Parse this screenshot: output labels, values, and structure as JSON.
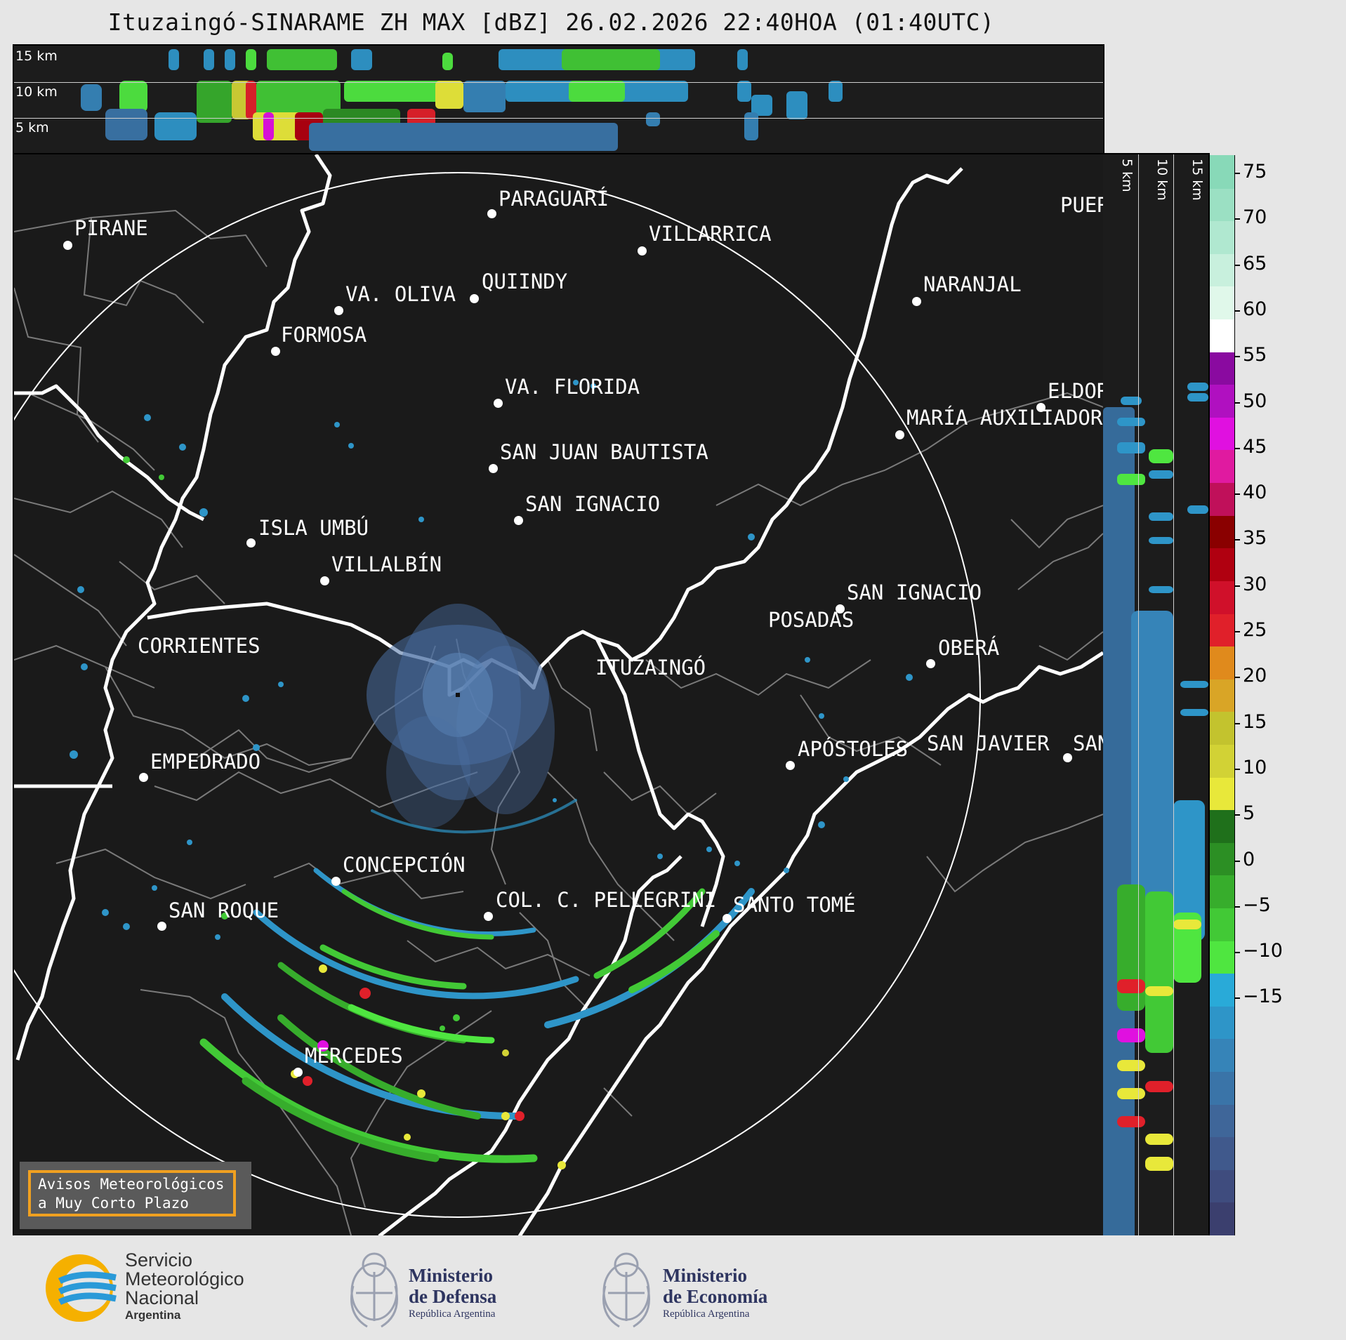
{
  "title": "Ituzaingó-SINARAME ZH MAX [dBZ] 26.02.2026 22:40HOA (01:40UTC)",
  "height_labels": [
    "15 km",
    "10 km",
    "5 km"
  ],
  "colorbar": {
    "ticks": [
      "75",
      "70",
      "65",
      "60",
      "55",
      "50",
      "45",
      "40",
      "35",
      "30",
      "25",
      "20",
      "15",
      "10",
      "5",
      "0",
      "−5",
      "−10",
      "−15"
    ],
    "colors": [
      "#3b3f6e",
      "#3f4c7e",
      "#40598c",
      "#3f6699",
      "#3a74a8",
      "#3684b8",
      "#2e95c8",
      "#29aad8",
      "#4fe640",
      "#42c936",
      "#37ad2c",
      "#2c8f24",
      "#1f701b",
      "#e8e83a",
      "#d2d235",
      "#c3c32e",
      "#d9a526",
      "#e08a1c",
      "#e0202a",
      "#d0102a",
      "#b00010",
      "#8a0000",
      "#c0105a",
      "#e01aa0",
      "#e010e0",
      "#b010c0",
      "#8a0aa0",
      "#ffffff",
      "#e0f8ea",
      "#c8f0dd",
      "#b0e8d0",
      "#9be0c3",
      "#88d9b8"
    ]
  },
  "cities": [
    {
      "name": "PARAGUARÍ"
    },
    {
      "name": "PIRANE"
    },
    {
      "name": "VILLARRICA"
    },
    {
      "name": "QUIINDY"
    },
    {
      "name": "VA. OLIVA"
    },
    {
      "name": "NARANJAL"
    },
    {
      "name": "FORMOSA"
    },
    {
      "name": "PUERTO"
    },
    {
      "name": "VA. FLORIDA"
    },
    {
      "name": "ELDORADO"
    },
    {
      "name": "MARÍA AUXILIADORA"
    },
    {
      "name": "SAN JUAN BAUTISTA"
    },
    {
      "name": "SAN IGNACIO"
    },
    {
      "name": "ISLA UMBÚ"
    },
    {
      "name": "VILLALBÍN"
    },
    {
      "name": "SAN IGNACIO"
    },
    {
      "name": "POSADAS"
    },
    {
      "name": "CORRIENTES"
    },
    {
      "name": "ITUZAINGÓ"
    },
    {
      "name": "OBERÁ"
    },
    {
      "name": "APÓSTOLES"
    },
    {
      "name": "SAN JAVIER"
    },
    {
      "name": "SAN"
    },
    {
      "name": "EMPEDRADO"
    },
    {
      "name": "CONCEPCIÓN"
    },
    {
      "name": "COL. C. PELLEGRINI"
    },
    {
      "name": "SANTO TOMÉ"
    },
    {
      "name": "SAN ROQUE"
    },
    {
      "name": "MERCEDES"
    }
  ],
  "avisos": {
    "line1": "Avisos Meteorológicos",
    "line2": "a Muy Corto Plazo"
  },
  "footer": {
    "smn_line1": "Servicio",
    "smn_line2": "Meteorológico",
    "smn_line3": "Nacional",
    "smn_line4": "Argentina",
    "def_line1": "Ministerio",
    "def_line2": "de Defensa",
    "def_line3": "República Argentina",
    "eco_line1": "Ministerio",
    "eco_line2": "de Economía",
    "eco_line3": "República Argentina"
  }
}
